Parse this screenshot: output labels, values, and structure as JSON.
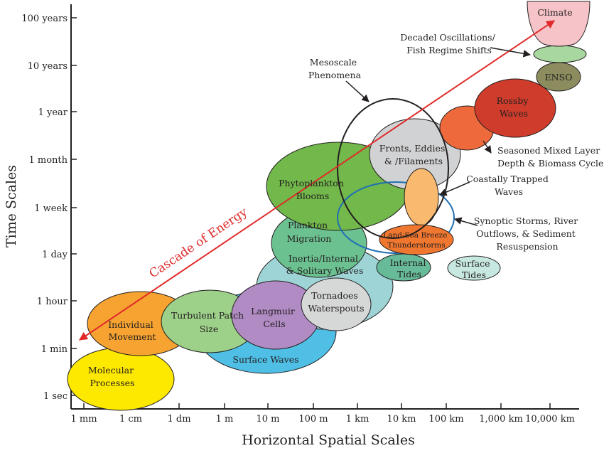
{
  "axes": {
    "y_title": "Time Scales",
    "x_title": "Horizontal Spatial Scales",
    "y_ticks": [
      "1 sec",
      "1 min",
      "1 hour",
      "1 day",
      "1 week",
      "1 month",
      "1 year",
      "10 years",
      "100 years"
    ],
    "x_ticks": [
      "1 mm",
      "1 cm",
      "1 dm",
      "1 m",
      "10 m",
      "100 m",
      "1 km",
      "10 km",
      "100 km",
      "1,000 km",
      "10,000 km"
    ]
  },
  "arrow_label": "Cascade of Energy",
  "phenomena": {
    "molecular": [
      "Molecular",
      "Processes"
    ],
    "individual": [
      "Individual",
      "Movement"
    ],
    "turbulent": [
      "Turbulent Patch",
      "Size"
    ],
    "surface_waves": [
      "Surface Waves"
    ],
    "langmuir": [
      "Langmuir",
      "Cells"
    ],
    "tornadoes": [
      "Tornadoes",
      "Waterspouts"
    ],
    "inertia": [
      "Inertia/Internal",
      "& Solitary Waves"
    ],
    "plankton_migration": [
      "Plankton",
      "Migration"
    ],
    "phytoplankton": [
      "Phytoplankton",
      "Blooms"
    ],
    "internal_tides": [
      "Internal",
      "Tides"
    ],
    "surface_tides": [
      "Surface",
      "Tides"
    ],
    "land_sea": [
      "Land-Sea Breeze",
      "Thunderstorms"
    ],
    "fronts": [
      "Fronts, Eddies",
      "& /Filaments"
    ],
    "rossby": [
      "Rossby",
      "Waves"
    ],
    "enso": [
      "ENSO"
    ],
    "climate": [
      "Climate"
    ]
  },
  "callouts": {
    "mesoscale": [
      "Mesoscale",
      "Phenomena"
    ],
    "decadal": [
      "Decadel Oscillations/",
      "Fish Regime Shifts"
    ],
    "mixed_layer": [
      "Seasoned Mixed Layer",
      "Depth & Biomass Cycles"
    ],
    "coastal": [
      "Coastally Trapped",
      "Waves"
    ],
    "synoptic": [
      "Synoptic Storms, River",
      "Outflows, & Sediment",
      "Resuspension"
    ]
  },
  "colors": {
    "molecular": "#fde800",
    "individual": "#f6a331",
    "turbulent": "#9dd089",
    "surface_waves": "#4fbfe6",
    "langmuir": "#b18cc4",
    "tornadoes": "#d6d7d7",
    "inertia": "#9ed4d6",
    "plankton_migration": "#6cc190",
    "phytoplankton": "#72b84a",
    "internal_tides": "#67bb98",
    "surface_tides": "#c7e8e0",
    "land_sea": "#f0772f",
    "fronts": "#d1d2d3",
    "mixed_layer": "#ee6a3d",
    "coastal": "#f9b96e",
    "rossby": "#cf3c2c",
    "enso": "#8c8c5f",
    "decadal": "#a8d89f",
    "climate": "#f6c3c8",
    "arrow": "#e02a2a",
    "outline": "#231f20",
    "synoptic_ring": "#1f6fb2"
  }
}
